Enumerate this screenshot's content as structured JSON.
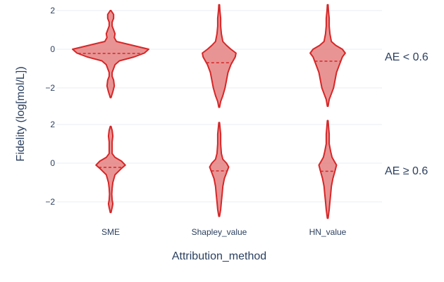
{
  "chart_data": {
    "type": "violin",
    "xlabel": "Attribution_method",
    "ylabel": "Fidelity (log[mol/L])",
    "categories": [
      "SME",
      "Shapley_value",
      "HN_value"
    ],
    "y_ticks": [
      {
        "value": 2,
        "label": "2"
      },
      {
        "value": 0,
        "label": "0"
      },
      {
        "value": -2,
        "label": "−2"
      }
    ],
    "ylim": [
      -3.0,
      2.3
    ],
    "colors": {
      "fill": "#e06666",
      "fill_opacity": 0.7,
      "line": "#d62728",
      "median": "#d62728"
    },
    "facets": [
      {
        "label": "AE < 0.6",
        "violins": [
          {
            "category": "SME",
            "median": -0.22,
            "y_min": -2.5,
            "y_max": 2.0,
            "profile": [
              [
                -2.5,
                0.5
              ],
              [
                -2.2,
                3
              ],
              [
                -1.9,
                5
              ],
              [
                -1.6,
                4
              ],
              [
                -1.4,
                2
              ],
              [
                -1.2,
                2
              ],
              [
                -1.0,
                4
              ],
              [
                -0.8,
                6
              ],
              [
                -0.6,
                12
              ],
              [
                -0.4,
                32
              ],
              [
                -0.2,
                46
              ],
              [
                0.0,
                52
              ],
              [
                0.2,
                30
              ],
              [
                0.4,
                8
              ],
              [
                0.6,
                5
              ],
              [
                0.8,
                6
              ],
              [
                1.0,
                4
              ],
              [
                1.2,
                2
              ],
              [
                1.4,
                2
              ],
              [
                1.6,
                4
              ],
              [
                1.8,
                4
              ],
              [
                2.0,
                0.5
              ]
            ]
          },
          {
            "category": "Shapley_value",
            "median": -0.7,
            "y_min": -3.0,
            "y_max": 2.3,
            "profile": [
              [
                -3.0,
                0.5
              ],
              [
                -2.7,
                2
              ],
              [
                -2.4,
                5
              ],
              [
                -2.0,
                8
              ],
              [
                -1.6,
                10
              ],
              [
                -1.2,
                12
              ],
              [
                -0.8,
                16
              ],
              [
                -0.4,
                22
              ],
              [
                -0.2,
                23
              ],
              [
                0.0,
                16
              ],
              [
                0.2,
                10
              ],
              [
                0.4,
                5
              ],
              [
                0.8,
                3
              ],
              [
                1.2,
                2
              ],
              [
                1.6,
                2
              ],
              [
                2.0,
                1
              ],
              [
                2.3,
                0.5
              ]
            ]
          },
          {
            "category": "HN_value",
            "median": -0.62,
            "y_min": -2.95,
            "y_max": 2.3,
            "profile": [
              [
                -2.95,
                0.5
              ],
              [
                -2.6,
                2
              ],
              [
                -2.3,
                5
              ],
              [
                -2.0,
                8
              ],
              [
                -1.6,
                10
              ],
              [
                -1.2,
                12
              ],
              [
                -0.8,
                16
              ],
              [
                -0.4,
                20
              ],
              [
                -0.2,
                24
              ],
              [
                0.0,
                20
              ],
              [
                0.2,
                11
              ],
              [
                0.4,
                5
              ],
              [
                0.8,
                3
              ],
              [
                1.2,
                2
              ],
              [
                1.6,
                2
              ],
              [
                2.0,
                1
              ],
              [
                2.3,
                0.5
              ]
            ]
          }
        ]
      },
      {
        "label": "AE ≥ 0.6",
        "violins": [
          {
            "category": "SME",
            "median": -0.22,
            "y_min": -2.55,
            "y_max": 1.9,
            "profile": [
              [
                -2.55,
                0.5
              ],
              [
                -2.3,
                2
              ],
              [
                -2.1,
                3
              ],
              [
                -1.9,
                2
              ],
              [
                -1.6,
                1.5
              ],
              [
                -1.3,
                2
              ],
              [
                -1.0,
                3
              ],
              [
                -0.6,
                6
              ],
              [
                -0.3,
                14
              ],
              [
                -0.1,
                20
              ],
              [
                0.1,
                15
              ],
              [
                0.3,
                6
              ],
              [
                0.5,
                2
              ],
              [
                0.8,
                2
              ],
              [
                1.1,
                2
              ],
              [
                1.4,
                3
              ],
              [
                1.7,
                2
              ],
              [
                1.9,
                0.5
              ]
            ]
          },
          {
            "category": "Shapley_value",
            "median": -0.4,
            "y_min": -2.75,
            "y_max": 2.1,
            "profile": [
              [
                -2.75,
                0.5
              ],
              [
                -2.4,
                2
              ],
              [
                -2.0,
                3
              ],
              [
                -1.6,
                4
              ],
              [
                -1.2,
                5
              ],
              [
                -0.8,
                7
              ],
              [
                -0.5,
                10
              ],
              [
                -0.2,
                13
              ],
              [
                0.0,
                10
              ],
              [
                0.2,
                5
              ],
              [
                0.5,
                3
              ],
              [
                1.0,
                2
              ],
              [
                1.5,
                2
              ],
              [
                2.1,
                0.5
              ]
            ]
          },
          {
            "category": "HN_value",
            "median": -0.42,
            "y_min": -2.85,
            "y_max": 2.2,
            "profile": [
              [
                -2.85,
                0.5
              ],
              [
                -2.4,
                2
              ],
              [
                -2.0,
                3
              ],
              [
                -1.6,
                4
              ],
              [
                -1.2,
                5
              ],
              [
                -0.8,
                7
              ],
              [
                -0.4,
                10
              ],
              [
                -0.1,
                12
              ],
              [
                0.1,
                9
              ],
              [
                0.3,
                6
              ],
              [
                0.6,
                4
              ],
              [
                1.0,
                2
              ],
              [
                1.5,
                2
              ],
              [
                2.2,
                0.5
              ]
            ]
          }
        ]
      }
    ]
  }
}
